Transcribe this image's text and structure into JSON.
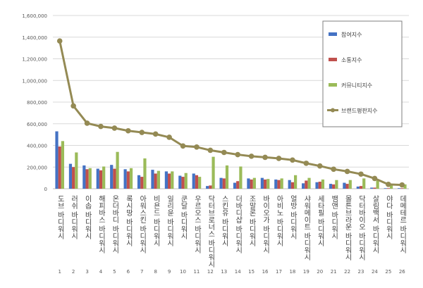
{
  "chart_data": {
    "type": "bar",
    "title": "",
    "xlabel": "",
    "ylabel": "",
    "ylim": [
      0,
      1600000
    ],
    "yticks": [
      "0",
      "200,000",
      "400,000",
      "600,000",
      "800,000",
      "1,000,000",
      "1,200,000",
      "1,400,000",
      "1,600,000"
    ],
    "grid": true,
    "legend_position": "top-right",
    "categories": [
      "도브 바디워시",
      "러쉬 바디워시",
      "이솝 바디워시",
      "해피바스 바디워시",
      "온더바디 바디워시",
      "록시땅 바디워시",
      "아워스킨 바디워시",
      "비욘드 바디워시",
      "일리윤 바디워시",
      "쿤달 바디워시",
      "우르오스 바디워시",
      "닥터브로너스 바디워시",
      "스킨유 바디워시",
      "더바디샵 바디워시",
      "조말론 바디워시",
      "바이오가 바디워시",
      "아비노 바디워시",
      "얼방 바디워시",
      "샤워메이트 바디워시",
      "세타필 바디워시",
      "뱀앤 바디워시",
      "몰튼브라운 바디워시",
      "닥터바이오 바디워시",
      "살림백서 바디워시",
      "야다 바디워시",
      "데메테르 바디워시"
    ],
    "ranks": [
      "1",
      "2",
      "3",
      "4",
      "5",
      "6",
      "7",
      "8",
      "9",
      "10",
      "11",
      "12",
      "13",
      "14",
      "15",
      "16",
      "17",
      "18",
      "19",
      "20",
      "21",
      "22",
      "23",
      "24",
      "25",
      "26"
    ],
    "series": [
      {
        "name": "참여지수",
        "kind": "bar",
        "color": "#4472C4",
        "values": [
          530000,
          230000,
          215000,
          185000,
          220000,
          180000,
          125000,
          175000,
          160000,
          120000,
          140000,
          25000,
          100000,
          55000,
          95000,
          100000,
          85000,
          80000,
          50000,
          60000,
          45000,
          55000,
          20000,
          10000,
          5000,
          5000
        ]
      },
      {
        "name": "소통지수",
        "kind": "bar",
        "color": "#C0504D",
        "values": [
          390000,
          200000,
          180000,
          170000,
          185000,
          160000,
          110000,
          140000,
          140000,
          110000,
          125000,
          30000,
          95000,
          70000,
          85000,
          85000,
          80000,
          60000,
          75000,
          65000,
          40000,
          45000,
          25000,
          10000,
          5000,
          5000
        ]
      },
      {
        "name": "커뮤니티지수",
        "kind": "bar",
        "color": "#9BBB59",
        "values": [
          440000,
          335000,
          190000,
          205000,
          340000,
          190000,
          280000,
          165000,
          160000,
          145000,
          110000,
          295000,
          215000,
          205000,
          100000,
          90000,
          95000,
          125000,
          100000,
          85000,
          80000,
          80000,
          95000,
          75000,
          30000,
          40000
        ]
      },
      {
        "name": "브랜드평판지수",
        "kind": "line",
        "color": "#948A54",
        "values": [
          1365000,
          765000,
          605000,
          575000,
          560000,
          535000,
          520000,
          505000,
          475000,
          395000,
          385000,
          355000,
          335000,
          315000,
          300000,
          290000,
          280000,
          265000,
          235000,
          210000,
          180000,
          160000,
          135000,
          95000,
          40000,
          35000
        ]
      }
    ]
  }
}
